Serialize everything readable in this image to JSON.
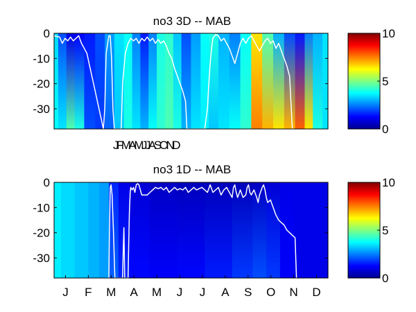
{
  "chart_data": [
    {
      "type": "heatmap",
      "title": "no3 3D   -- MAB",
      "xlabel": "",
      "ylabel": "",
      "ylim": [
        -38,
        0
      ],
      "yticks": [
        0,
        -10,
        -20,
        -30
      ],
      "xtick_text": "JFMAMJJASOND",
      "colorbar": {
        "min": 0,
        "max": 10,
        "ticks": [
          0,
          5,
          10
        ]
      },
      "columns": [
        {
          "x": 0.0,
          "top": 3.4,
          "bottom": 3.8
        },
        {
          "x": 0.03,
          "top": 2.0,
          "bottom": 3.5
        },
        {
          "x": 0.06,
          "top": 1.0,
          "bottom": 4.5
        },
        {
          "x": 0.09,
          "top": 1.2,
          "bottom": 4.0
        },
        {
          "x": 0.13,
          "top": 1.5,
          "bottom": 2.0
        },
        {
          "x": 0.17,
          "top": 2.0,
          "bottom": 1.8
        },
        {
          "x": 0.2,
          "top": 2.8,
          "bottom": 2.2
        },
        {
          "x": 0.24,
          "top": 3.5,
          "bottom": 3.2
        },
        {
          "x": 0.27,
          "top": 3.8,
          "bottom": 4.0
        },
        {
          "x": 0.3,
          "top": 2.5,
          "bottom": 3.5
        },
        {
          "x": 0.33,
          "top": 1.5,
          "bottom": 3.0
        },
        {
          "x": 0.36,
          "top": 2.5,
          "bottom": 3.8
        },
        {
          "x": 0.39,
          "top": 4.0,
          "bottom": 4.2
        },
        {
          "x": 0.42,
          "top": 4.2,
          "bottom": 4.5
        },
        {
          "x": 0.45,
          "top": 3.2,
          "bottom": 4.0
        },
        {
          "x": 0.48,
          "top": 2.0,
          "bottom": 3.0
        },
        {
          "x": 0.52,
          "top": 2.8,
          "bottom": 3.5
        },
        {
          "x": 0.55,
          "top": 3.8,
          "bottom": 3.6
        },
        {
          "x": 0.58,
          "top": 4.0,
          "bottom": 3.2
        },
        {
          "x": 0.62,
          "top": 3.0,
          "bottom": 3.5
        },
        {
          "x": 0.66,
          "top": 2.5,
          "bottom": 3.8
        },
        {
          "x": 0.7,
          "top": 3.8,
          "bottom": 4.2
        },
        {
          "x": 0.74,
          "top": 6.5,
          "bottom": 7.5
        },
        {
          "x": 0.78,
          "top": 4.5,
          "bottom": 7.0
        },
        {
          "x": 0.82,
          "top": 3.0,
          "bottom": 6.5
        },
        {
          "x": 0.86,
          "top": 2.0,
          "bottom": 7.0
        },
        {
          "x": 0.9,
          "top": 1.5,
          "bottom": 7.8
        },
        {
          "x": 0.93,
          "top": 2.5,
          "bottom": 6.5
        },
        {
          "x": 0.96,
          "top": 3.0,
          "bottom": 4.0
        },
        {
          "x": 1.0,
          "top": 3.5,
          "bottom": 3.5
        }
      ],
      "line": [
        [
          0.0,
          -1
        ],
        [
          0.02,
          -1.5
        ],
        [
          0.03,
          -4
        ],
        [
          0.04,
          -2
        ],
        [
          0.05,
          -3
        ],
        [
          0.06,
          -1.5
        ],
        [
          0.07,
          -3
        ],
        [
          0.08,
          -2
        ],
        [
          0.09,
          -1
        ],
        [
          0.1,
          -4
        ],
        [
          0.11,
          -6
        ],
        [
          0.12,
          -8
        ],
        [
          0.13,
          -13
        ],
        [
          0.14,
          -18
        ],
        [
          0.15,
          -23
        ],
        [
          0.16,
          -28
        ],
        [
          0.17,
          -33
        ],
        [
          0.18,
          -38
        ],
        [
          0.185,
          -30
        ],
        [
          0.19,
          -8
        ],
        [
          0.2,
          -1
        ],
        [
          0.205,
          -1
        ],
        [
          0.21,
          -10
        ],
        [
          0.215,
          -30
        ],
        [
          0.22,
          -38
        ],
        [
          0.245,
          -38
        ],
        [
          0.25,
          -20
        ],
        [
          0.26,
          -8
        ],
        [
          0.27,
          -4
        ],
        [
          0.28,
          -2
        ],
        [
          0.29,
          -3
        ],
        [
          0.3,
          -2
        ],
        [
          0.31,
          -4
        ],
        [
          0.32,
          -2
        ],
        [
          0.33,
          -3
        ],
        [
          0.34,
          -1.5
        ],
        [
          0.35,
          -3
        ],
        [
          0.36,
          -2
        ],
        [
          0.37,
          -4
        ],
        [
          0.38,
          -2.5
        ],
        [
          0.39,
          -4
        ],
        [
          0.4,
          -3
        ],
        [
          0.41,
          -5
        ],
        [
          0.42,
          -8
        ],
        [
          0.43,
          -10
        ],
        [
          0.44,
          -14
        ],
        [
          0.45,
          -17
        ],
        [
          0.46,
          -20
        ],
        [
          0.47,
          -23
        ],
        [
          0.475,
          -25
        ],
        [
          0.48,
          -27
        ],
        [
          0.485,
          -38
        ],
        [
          0.55,
          -38
        ],
        [
          0.56,
          -30
        ],
        [
          0.565,
          -20
        ],
        [
          0.57,
          -12
        ],
        [
          0.575,
          -6
        ],
        [
          0.58,
          -2
        ],
        [
          0.59,
          -0.5
        ],
        [
          0.6,
          -1
        ],
        [
          0.61,
          -3
        ],
        [
          0.62,
          -2
        ],
        [
          0.63,
          -4
        ],
        [
          0.64,
          -6
        ],
        [
          0.65,
          -9
        ],
        [
          0.66,
          -12
        ],
        [
          0.67,
          -8
        ],
        [
          0.68,
          -4
        ],
        [
          0.69,
          -2
        ],
        [
          0.7,
          -4
        ],
        [
          0.71,
          -2
        ],
        [
          0.72,
          -1
        ],
        [
          0.73,
          -3
        ],
        [
          0.74,
          -5
        ],
        [
          0.75,
          -7
        ],
        [
          0.76,
          -5
        ],
        [
          0.77,
          -3
        ],
        [
          0.78,
          -2
        ],
        [
          0.79,
          -4
        ],
        [
          0.8,
          -3
        ],
        [
          0.81,
          -6
        ],
        [
          0.82,
          -4
        ],
        [
          0.83,
          -7
        ],
        [
          0.84,
          -10
        ],
        [
          0.85,
          -13
        ],
        [
          0.855,
          -15
        ],
        [
          0.86,
          -17
        ],
        [
          0.87,
          -38
        ]
      ]
    },
    {
      "type": "heatmap",
      "title": "no3 1D   -- MAB",
      "xlabel": "",
      "ylabel": "",
      "ylim": [
        -38,
        0
      ],
      "yticks": [
        0,
        -10,
        -20,
        -30
      ],
      "xticks": [
        "J",
        "F",
        "M",
        "A",
        "M",
        "J",
        "J",
        "A",
        "S",
        "O",
        "N",
        "D"
      ],
      "colorbar": {
        "min": 0,
        "max": 10,
        "ticks": [
          0,
          5,
          10
        ]
      },
      "columns": [
        {
          "x": 0.0,
          "top": 3.6,
          "bottom": 3.6
        },
        {
          "x": 0.05,
          "top": 3.4,
          "bottom": 3.4
        },
        {
          "x": 0.1,
          "top": 3.2,
          "bottom": 3.2
        },
        {
          "x": 0.15,
          "top": 3.0,
          "bottom": 3.0
        },
        {
          "x": 0.18,
          "top": 2.8,
          "bottom": 2.8
        },
        {
          "x": 0.22,
          "top": 1.6,
          "bottom": 2.2
        },
        {
          "x": 0.25,
          "top": 1.0,
          "bottom": 1.6
        },
        {
          "x": 0.3,
          "top": 0.8,
          "bottom": 1.3
        },
        {
          "x": 0.4,
          "top": 0.6,
          "bottom": 1.2
        },
        {
          "x": 0.5,
          "top": 0.5,
          "bottom": 1.3
        },
        {
          "x": 0.6,
          "top": 0.5,
          "bottom": 1.5
        },
        {
          "x": 0.7,
          "top": 0.5,
          "bottom": 1.8
        },
        {
          "x": 0.75,
          "top": 0.6,
          "bottom": 2.0
        },
        {
          "x": 0.8,
          "top": 0.8,
          "bottom": 1.8
        },
        {
          "x": 0.85,
          "top": 1.0,
          "bottom": 1.2
        },
        {
          "x": 0.9,
          "top": 1.0,
          "bottom": 1.0
        },
        {
          "x": 1.0,
          "top": 1.0,
          "bottom": 1.0
        }
      ],
      "line": [
        [
          0.2,
          -38
        ],
        [
          0.202,
          -20
        ],
        [
          0.205,
          -2
        ],
        [
          0.208,
          -1
        ],
        [
          0.212,
          -5
        ],
        [
          0.217,
          -20
        ],
        [
          0.222,
          -38
        ],
        [
          0.25,
          -38
        ],
        [
          0.252,
          -30
        ],
        [
          0.255,
          -18
        ],
        [
          0.258,
          -38
        ],
        [
          0.27,
          -38
        ],
        [
          0.272,
          -28
        ],
        [
          0.275,
          -12
        ],
        [
          0.278,
          -4
        ],
        [
          0.28,
          -2
        ],
        [
          0.285,
          -3
        ],
        [
          0.29,
          -2
        ],
        [
          0.295,
          -4
        ],
        [
          0.3,
          -1
        ],
        [
          0.305,
          -0.5
        ],
        [
          0.31,
          -1
        ],
        [
          0.315,
          -3
        ],
        [
          0.32,
          -5
        ],
        [
          0.33,
          -5
        ],
        [
          0.34,
          -5
        ],
        [
          0.35,
          -4
        ],
        [
          0.36,
          -3
        ],
        [
          0.37,
          -2
        ],
        [
          0.38,
          -2.5
        ],
        [
          0.39,
          -2
        ],
        [
          0.4,
          -3
        ],
        [
          0.41,
          -2
        ],
        [
          0.42,
          -4
        ],
        [
          0.43,
          -3
        ],
        [
          0.44,
          -2
        ],
        [
          0.45,
          -3
        ],
        [
          0.46,
          -2.5
        ],
        [
          0.47,
          -3
        ],
        [
          0.48,
          -2
        ],
        [
          0.49,
          -4
        ],
        [
          0.5,
          -3
        ],
        [
          0.51,
          -2
        ],
        [
          0.52,
          -3
        ],
        [
          0.53,
          -2.5
        ],
        [
          0.54,
          -2
        ],
        [
          0.55,
          -3
        ],
        [
          0.56,
          -4
        ],
        [
          0.57,
          -1
        ],
        [
          0.58,
          -4
        ],
        [
          0.59,
          -3
        ],
        [
          0.6,
          -2
        ],
        [
          0.61,
          -5
        ],
        [
          0.62,
          -3
        ],
        [
          0.63,
          -2
        ],
        [
          0.64,
          -4
        ],
        [
          0.65,
          -6
        ],
        [
          0.655,
          -2
        ],
        [
          0.66,
          -1
        ],
        [
          0.665,
          -4
        ],
        [
          0.67,
          -6
        ],
        [
          0.68,
          -3
        ],
        [
          0.69,
          -6
        ],
        [
          0.7,
          -5
        ],
        [
          0.705,
          -2
        ],
        [
          0.71,
          -1
        ],
        [
          0.715,
          -4
        ],
        [
          0.72,
          -5
        ],
        [
          0.73,
          -3
        ],
        [
          0.74,
          -6
        ],
        [
          0.745,
          -8
        ],
        [
          0.75,
          -5
        ],
        [
          0.76,
          -2
        ],
        [
          0.765,
          -1
        ],
        [
          0.77,
          -3
        ],
        [
          0.775,
          -6
        ],
        [
          0.78,
          -8
        ],
        [
          0.79,
          -7
        ],
        [
          0.8,
          -10
        ],
        [
          0.81,
          -13
        ],
        [
          0.82,
          -15
        ],
        [
          0.83,
          -16
        ],
        [
          0.84,
          -17
        ],
        [
          0.85,
          -19
        ],
        [
          0.86,
          -20
        ],
        [
          0.87,
          -21
        ],
        [
          0.88,
          -22
        ],
        [
          0.885,
          -38
        ]
      ]
    }
  ]
}
